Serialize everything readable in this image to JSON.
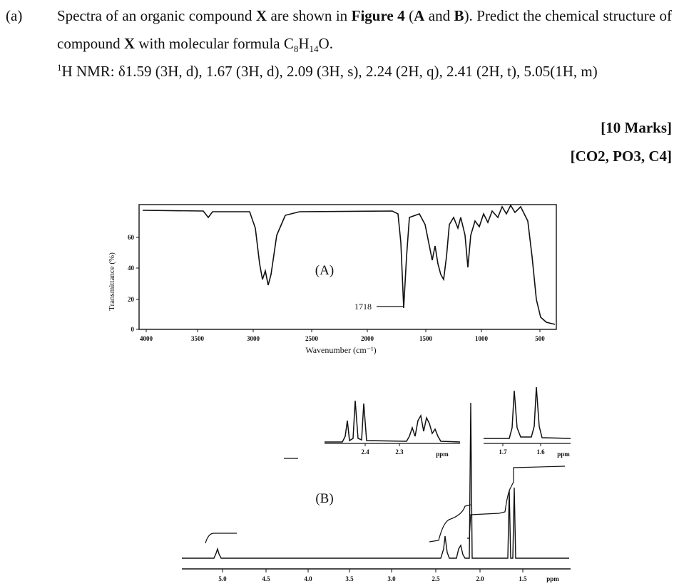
{
  "question": {
    "label": "(a)",
    "intro": [
      "Spectra of an organic compound ",
      "X",
      " are shown in ",
      "Figure 4",
      " (",
      "A",
      " and ",
      "B",
      "). Predict the chemical structure of compound ",
      "X",
      " with molecular formula C",
      "8",
      "H",
      "14",
      "O."
    ],
    "nmr": [
      "1",
      "H NMR: δ1.59 (3H, d), 1.67 (3H, d), 2.09 (3H, s), 2.24 (2H, q), 2.41 (2H, t), 5.05(1H, m)"
    ],
    "marks": "[10 Marks]",
    "outcomes": "[CO2, PO3, C4]"
  },
  "figure_a": {
    "label": "(A)",
    "y_axis_label": "Transmittance (%)",
    "x_axis_label": "Wavenumber (cm⁻¹)",
    "annotation": "1718",
    "x_ticks": [
      "4000",
      "3500",
      "3000",
      "2500",
      "2000",
      "1500",
      "1000",
      "500"
    ],
    "y_ticks": [
      "60",
      "40",
      "20",
      "0"
    ]
  },
  "figure_b": {
    "label": "(B)",
    "x_ticks": [
      "5.0",
      "4.5",
      "4.0",
      "3.5",
      "3.0",
      "2.5",
      "2.0",
      "1.5"
    ],
    "x_unit": "ppm",
    "inset_1": {
      "ticks": [
        "2.4",
        "2.3"
      ],
      "unit": "ppm"
    },
    "inset_2": {
      "ticks": [
        "1.7",
        "1.6"
      ],
      "unit": "ppm"
    }
  }
}
